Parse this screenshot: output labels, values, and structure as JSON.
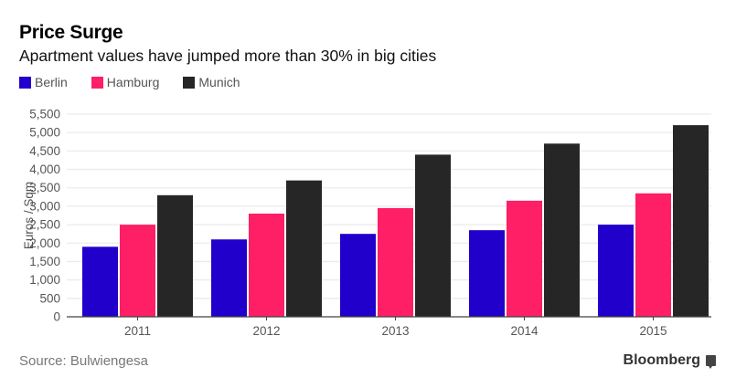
{
  "header": {
    "title": "Price Surge",
    "subtitle": "Apartment values have jumped more than 30% in big cities"
  },
  "legend": [
    {
      "label": "Berlin",
      "color": "#2200cc"
    },
    {
      "label": "Hamburg",
      "color": "#ff1f66"
    },
    {
      "label": "Munich",
      "color": "#262626"
    }
  ],
  "footer": {
    "source": "Source: Bulwiengesa",
    "brand": "Bloomberg",
    "brand_icon": "bloomberg-chart-icon"
  },
  "chart_data": {
    "type": "bar",
    "title": "Price Surge",
    "subtitle": "Apartment values have jumped more than 30% in big cities",
    "xlabel": "",
    "ylabel": "Euros / Sqm",
    "categories": [
      "2011",
      "2012",
      "2013",
      "2014",
      "2015"
    ],
    "series": [
      {
        "name": "Berlin",
        "color": "#2200cc",
        "values": [
          1900,
          2100,
          2250,
          2350,
          2500
        ]
      },
      {
        "name": "Hamburg",
        "color": "#ff1f66",
        "values": [
          2500,
          2800,
          2950,
          3150,
          3350
        ]
      },
      {
        "name": "Munich",
        "color": "#262626",
        "values": [
          3300,
          3700,
          4400,
          4700,
          5200
        ]
      }
    ],
    "ylim": [
      0,
      5500
    ],
    "yticks": [
      0,
      500,
      1000,
      1500,
      2000,
      2500,
      3000,
      3500,
      4000,
      4500,
      5000,
      5500
    ],
    "ytick_labels": [
      "0",
      "500",
      "1,000",
      "1,500",
      "2,000",
      "2,500",
      "3,000",
      "3,500",
      "4,000",
      "4,500",
      "5,000",
      "5,500"
    ],
    "grid": true,
    "legend_position": "top-left",
    "source": "Source: Bulwiengesa"
  }
}
